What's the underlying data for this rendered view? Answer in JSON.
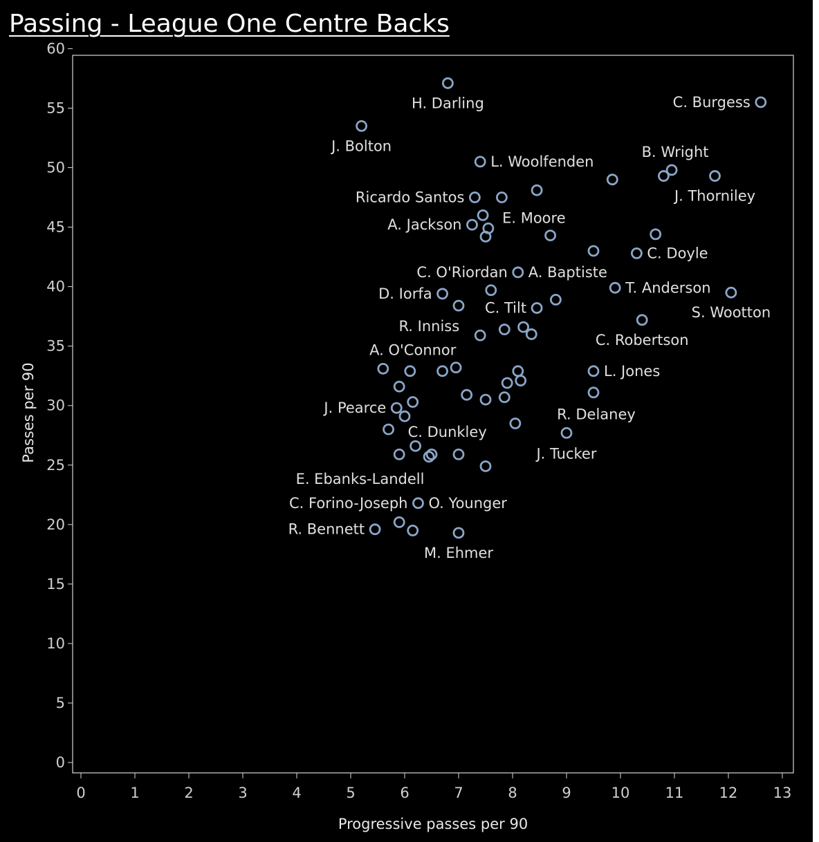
{
  "page_title": "Passing - League One Centre Backs",
  "chart_data": {
    "type": "scatter",
    "title": "Passing - League One Centre Backs",
    "xlabel": "Progressive passes per 90",
    "ylabel": "Passes per 90",
    "xlim": [
      0,
      13
    ],
    "ylim": [
      0,
      60
    ],
    "xticks": [
      0,
      1,
      2,
      3,
      4,
      5,
      6,
      7,
      8,
      9,
      10,
      11,
      12,
      13
    ],
    "yticks": [
      0,
      5,
      10,
      15,
      20,
      25,
      30,
      35,
      40,
      45,
      50,
      55,
      60
    ],
    "grid": false,
    "background": "#000000",
    "marker_color": "#8aa6c8",
    "points": [
      {
        "x": 6.8,
        "y": 57.1,
        "label": "H. Darling",
        "pos": "below"
      },
      {
        "x": 12.6,
        "y": 55.5,
        "label": "C. Burgess",
        "pos": "left"
      },
      {
        "x": 5.2,
        "y": 53.5,
        "label": "J. Bolton",
        "pos": "below"
      },
      {
        "x": 7.4,
        "y": 50.5,
        "label": "L. Woolfenden",
        "pos": "right"
      },
      {
        "x": 10.95,
        "y": 49.8,
        "label": "B. Wright",
        "pos": "above"
      },
      {
        "x": 10.8,
        "y": 49.3,
        "label": "",
        "pos": ""
      },
      {
        "x": 11.75,
        "y": 49.3,
        "label": "J. Thorniley",
        "pos": "below"
      },
      {
        "x": 9.85,
        "y": 49.0,
        "label": "",
        "pos": ""
      },
      {
        "x": 8.45,
        "y": 48.1,
        "label": "",
        "pos": ""
      },
      {
        "x": 7.3,
        "y": 47.5,
        "label": "Ricardo Santos",
        "pos": "left"
      },
      {
        "x": 7.8,
        "y": 47.5,
        "label": "",
        "pos": ""
      },
      {
        "x": 7.45,
        "y": 46.0,
        "label": "E. Moore",
        "pos": "rightlow"
      },
      {
        "x": 7.25,
        "y": 45.2,
        "label": "A. Jackson",
        "pos": "left"
      },
      {
        "x": 7.55,
        "y": 44.9,
        "label": "",
        "pos": ""
      },
      {
        "x": 7.5,
        "y": 44.2,
        "label": "",
        "pos": ""
      },
      {
        "x": 8.7,
        "y": 44.3,
        "label": "",
        "pos": ""
      },
      {
        "x": 10.65,
        "y": 44.4,
        "label": "",
        "pos": ""
      },
      {
        "x": 9.5,
        "y": 43.0,
        "label": "",
        "pos": ""
      },
      {
        "x": 10.3,
        "y": 42.8,
        "label": "C. Doyle",
        "pos": "right"
      },
      {
        "x": 8.1,
        "y": 41.2,
        "label": "A. Baptiste",
        "pos": "right"
      },
      {
        "x": 8.1,
        "y": 41.2,
        "label": "C. O'Riordan",
        "pos": "left"
      },
      {
        "x": 9.9,
        "y": 39.9,
        "label": "T. Anderson",
        "pos": "right"
      },
      {
        "x": 12.05,
        "y": 39.5,
        "label": "S. Wootton",
        "pos": "below"
      },
      {
        "x": 6.7,
        "y": 39.4,
        "label": "D. Iorfa",
        "pos": "left"
      },
      {
        "x": 7.6,
        "y": 39.7,
        "label": "",
        "pos": ""
      },
      {
        "x": 8.8,
        "y": 38.9,
        "label": "",
        "pos": ""
      },
      {
        "x": 7.0,
        "y": 38.4,
        "label": "",
        "pos": ""
      },
      {
        "x": 8.45,
        "y": 38.2,
        "label": "C. Tilt",
        "pos": "left"
      },
      {
        "x": 10.4,
        "y": 37.2,
        "label": "C. Robertson",
        "pos": "below"
      },
      {
        "x": 7.85,
        "y": 36.4,
        "label": "",
        "pos": ""
      },
      {
        "x": 8.2,
        "y": 36.6,
        "label": "",
        "pos": ""
      },
      {
        "x": 8.35,
        "y": 36.0,
        "label": "",
        "pos": ""
      },
      {
        "x": 7.4,
        "y": 35.9,
        "label": "R. Inniss",
        "pos": "aboveleft"
      },
      {
        "x": 5.6,
        "y": 33.1,
        "label": "A. O'Connor",
        "pos": "aboveright"
      },
      {
        "x": 6.1,
        "y": 32.9,
        "label": "",
        "pos": ""
      },
      {
        "x": 6.7,
        "y": 32.9,
        "label": "",
        "pos": ""
      },
      {
        "x": 6.95,
        "y": 33.2,
        "label": "",
        "pos": ""
      },
      {
        "x": 8.1,
        "y": 32.9,
        "label": "",
        "pos": ""
      },
      {
        "x": 8.15,
        "y": 32.1,
        "label": "",
        "pos": ""
      },
      {
        "x": 9.5,
        "y": 32.9,
        "label": "L. Jones",
        "pos": "right"
      },
      {
        "x": 7.9,
        "y": 31.9,
        "label": "",
        "pos": ""
      },
      {
        "x": 5.9,
        "y": 31.6,
        "label": "",
        "pos": ""
      },
      {
        "x": 9.5,
        "y": 31.1,
        "label": "",
        "pos": ""
      },
      {
        "x": 7.15,
        "y": 30.9,
        "label": "",
        "pos": ""
      },
      {
        "x": 7.5,
        "y": 30.5,
        "label": "",
        "pos": ""
      },
      {
        "x": 7.85,
        "y": 30.7,
        "label": "",
        "pos": ""
      },
      {
        "x": 6.15,
        "y": 30.3,
        "label": "",
        "pos": ""
      },
      {
        "x": 5.85,
        "y": 29.8,
        "label": "J. Pearce",
        "pos": "left"
      },
      {
        "x": 6.0,
        "y": 29.1,
        "label": "",
        "pos": ""
      },
      {
        "x": 9.0,
        "y": 27.7,
        "label": "R. Delaney",
        "pos": "aboveright"
      },
      {
        "x": 8.05,
        "y": 28.5,
        "label": "",
        "pos": ""
      },
      {
        "x": 5.7,
        "y": 28.0,
        "label": "C. Dunkley",
        "pos": "rightlow"
      },
      {
        "x": 9.0,
        "y": 27.7,
        "label": "J. Tucker",
        "pos": "belowleft"
      },
      {
        "x": 6.2,
        "y": 26.6,
        "label": "",
        "pos": ""
      },
      {
        "x": 5.9,
        "y": 25.9,
        "label": "",
        "pos": ""
      },
      {
        "x": 6.45,
        "y": 25.7,
        "label": "",
        "pos": ""
      },
      {
        "x": 6.5,
        "y": 25.9,
        "label": "",
        "pos": ""
      },
      {
        "x": 7.0,
        "y": 25.9,
        "label": "",
        "pos": ""
      },
      {
        "x": 7.5,
        "y": 24.9,
        "label": "",
        "pos": ""
      },
      {
        "x": 6.25,
        "y": 21.8,
        "label": "E. Ebanks-Landell",
        "pos": "aboveleftfar"
      },
      {
        "x": 6.25,
        "y": 21.8,
        "label": "C. Forino-Joseph",
        "pos": "left"
      },
      {
        "x": 6.25,
        "y": 21.8,
        "label": "O. Younger",
        "pos": "right"
      },
      {
        "x": 5.45,
        "y": 19.6,
        "label": "R. Bennett",
        "pos": "left"
      },
      {
        "x": 5.9,
        "y": 20.2,
        "label": "",
        "pos": ""
      },
      {
        "x": 6.15,
        "y": 19.5,
        "label": "",
        "pos": ""
      },
      {
        "x": 7.0,
        "y": 19.3,
        "label": "M. Ehmer",
        "pos": "below"
      }
    ]
  }
}
